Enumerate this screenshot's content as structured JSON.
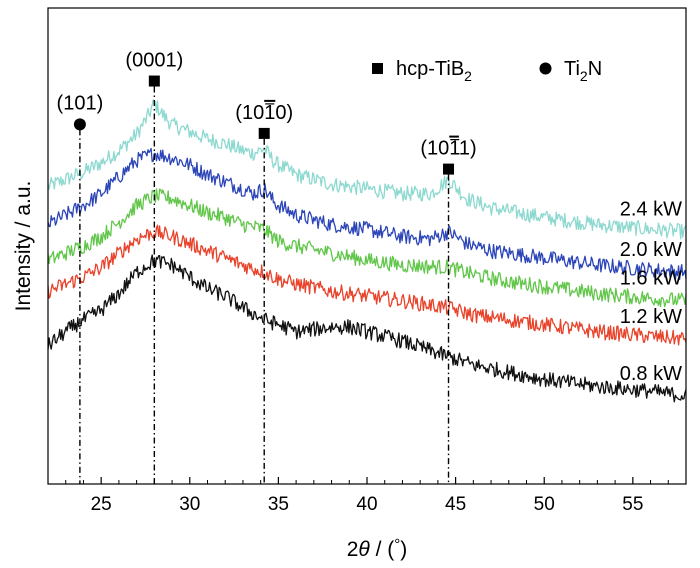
{
  "chart_data": {
    "type": "line",
    "xlabel": "2θ / (°)",
    "ylabel": "Intensity / a.u.",
    "xlim": [
      22,
      58
    ],
    "ylim": [
      0,
      10
    ],
    "xticks": [
      25,
      30,
      35,
      40,
      45,
      50,
      55
    ],
    "legend": {
      "placement": "top-right",
      "entries": [
        {
          "marker": "square",
          "label": "hcp-TiB",
          "sub": "2",
          "post": ""
        },
        {
          "marker": "circle",
          "label": "Ti",
          "sub": "2",
          "post": "N"
        }
      ]
    },
    "peaks": [
      {
        "x": 23.8,
        "marker": "circle",
        "label": "(101)",
        "y": 7.45
      },
      {
        "x": 28.0,
        "marker": "square",
        "label": "(0001)",
        "y": 8.35
      },
      {
        "x": 34.2,
        "marker": "square",
        "label": "(10",
        "bar": "1",
        "post": "0)",
        "y": 7.25
      },
      {
        "x": 44.6,
        "marker": "square",
        "label": "(10",
        "bar": "1",
        "post": "1)",
        "y": 6.5
      }
    ],
    "series": [
      {
        "name": "2.4 kW",
        "color": "#8dd9d0",
        "x": [
          22,
          23,
          24,
          25,
          26,
          27,
          27.6,
          28,
          28.5,
          29,
          30,
          31,
          32,
          33,
          33.6,
          34.2,
          34.8,
          36,
          38,
          40,
          42,
          43.6,
          44.6,
          45.6,
          47,
          50,
          53,
          56,
          58
        ],
        "y": [
          6.25,
          6.4,
          6.55,
          6.75,
          7.0,
          7.35,
          7.7,
          8.0,
          7.75,
          7.55,
          7.4,
          7.25,
          7.15,
          7.0,
          6.95,
          7.05,
          6.75,
          6.5,
          6.3,
          6.2,
          6.1,
          6.1,
          6.4,
          6.0,
          5.8,
          5.6,
          5.45,
          5.35,
          5.3
        ]
      },
      {
        "name": "2.0 kW",
        "color": "#2c45b8",
        "x": [
          22,
          23,
          24,
          25,
          26,
          27,
          28,
          29,
          30,
          31,
          32,
          33,
          33.6,
          34.2,
          34.8,
          36,
          38,
          40,
          42,
          43.6,
          44.6,
          45.6,
          47,
          50,
          53,
          56,
          58
        ],
        "y": [
          5.45,
          5.65,
          5.85,
          6.1,
          6.45,
          6.8,
          6.95,
          6.85,
          6.7,
          6.5,
          6.35,
          6.2,
          6.1,
          6.2,
          5.9,
          5.65,
          5.45,
          5.35,
          5.2,
          5.15,
          5.3,
          5.05,
          4.9,
          4.75,
          4.6,
          4.5,
          4.45
        ]
      },
      {
        "name": "1.6 kW",
        "color": "#62c64b",
        "x": [
          22,
          23,
          24,
          25,
          26,
          27,
          28,
          29,
          30,
          31,
          32,
          33,
          34.2,
          35,
          36,
          38,
          40,
          42,
          44.6,
          46,
          48,
          50,
          53,
          56,
          58
        ],
        "y": [
          4.7,
          4.85,
          5.0,
          5.2,
          5.5,
          5.85,
          6.05,
          6.0,
          5.85,
          5.7,
          5.6,
          5.45,
          5.35,
          5.1,
          5.0,
          4.85,
          4.7,
          4.6,
          4.55,
          4.4,
          4.25,
          4.15,
          4.0,
          3.9,
          3.85
        ]
      },
      {
        "name": "1.2 kW",
        "color": "#e8432b",
        "x": [
          22,
          23,
          24,
          25,
          26,
          27,
          28,
          29,
          30,
          31,
          32,
          33,
          34.2,
          35,
          36,
          38,
          40,
          42,
          44.6,
          46,
          48,
          50,
          53,
          56,
          58
        ],
        "y": [
          4.05,
          4.2,
          4.35,
          4.55,
          4.85,
          5.15,
          5.3,
          5.2,
          5.05,
          4.9,
          4.75,
          4.6,
          4.45,
          4.3,
          4.2,
          4.05,
          3.95,
          3.85,
          3.7,
          3.55,
          3.45,
          3.35,
          3.2,
          3.1,
          3.05
        ]
      },
      {
        "name": "0.8 kW",
        "color": "#111111",
        "x": [
          22,
          23,
          23.8,
          25,
          26,
          27,
          28,
          29,
          30,
          31,
          32,
          33,
          34.2,
          35,
          36,
          37,
          38,
          39,
          40,
          41,
          42,
          44,
          46,
          48,
          50,
          53,
          56,
          58
        ],
        "y": [
          2.9,
          3.2,
          3.4,
          3.65,
          4.0,
          4.45,
          4.7,
          4.6,
          4.35,
          4.1,
          3.95,
          3.7,
          3.45,
          3.35,
          3.2,
          3.25,
          3.3,
          3.3,
          3.2,
          3.1,
          3.0,
          2.75,
          2.5,
          2.35,
          2.2,
          2.05,
          1.95,
          1.85
        ]
      }
    ]
  }
}
